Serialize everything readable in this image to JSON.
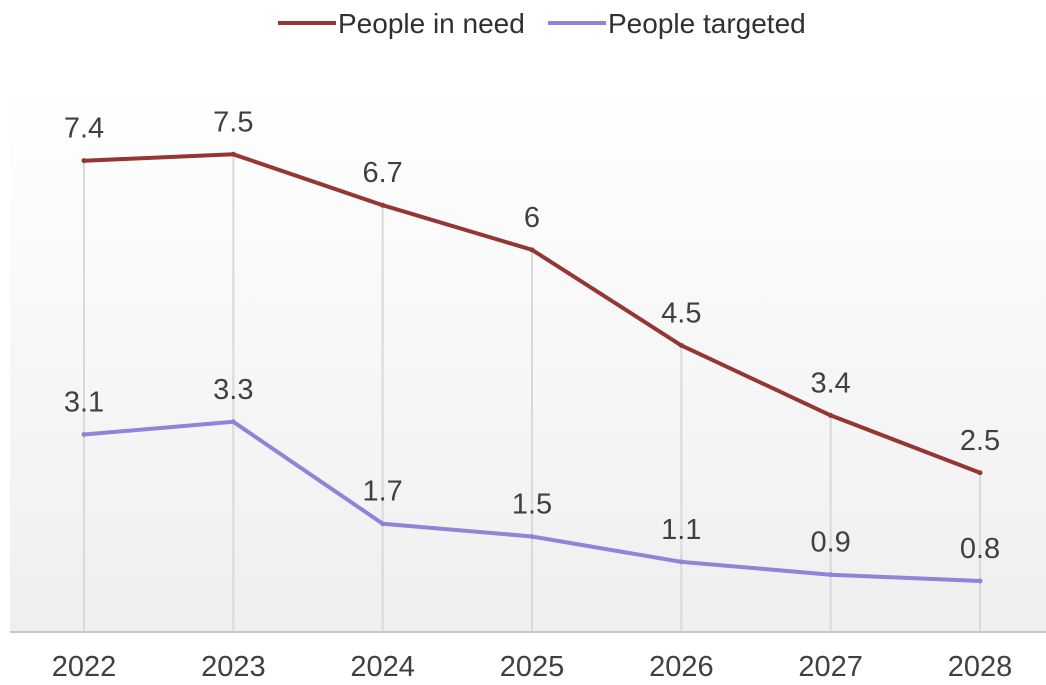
{
  "chart_data": {
    "type": "line",
    "categories": [
      "2022",
      "2023",
      "2024",
      "2025",
      "2026",
      "2027",
      "2028"
    ],
    "series": [
      {
        "name": "People in need",
        "color": "#943634",
        "values": [
          7.4,
          7.5,
          6.7,
          6.0,
          4.5,
          3.4,
          2.5
        ],
        "labels": [
          "7.4",
          "7.5",
          "6.7",
          "6",
          "4.5",
          "3.4",
          "2.5"
        ]
      },
      {
        "name": "People targeted",
        "color": "#8F84D8",
        "values": [
          3.1,
          3.3,
          1.7,
          1.5,
          1.1,
          0.9,
          0.8
        ],
        "labels": [
          "3.1",
          "3.3",
          "1.7",
          "1.5",
          "1.1",
          "0.9",
          "0.8"
        ]
      }
    ],
    "ylim": [
      0,
      9.2
    ],
    "grid": "vertical",
    "legend": "top-center"
  }
}
